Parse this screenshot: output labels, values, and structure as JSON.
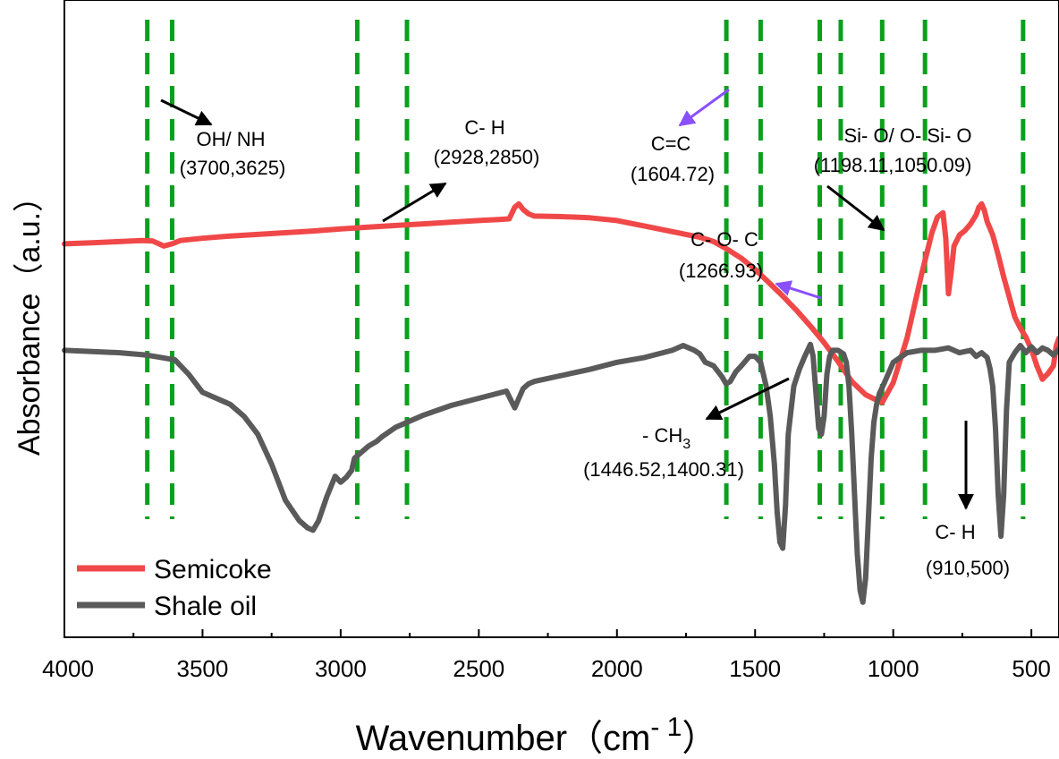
{
  "chart_data": {
    "type": "line",
    "title": "",
    "xlabel": "Wavenumber（cm",
    "xlabel_sup": "- 1",
    "xlabel_close": "）",
    "ylabel": "Absorbance（a.u.）",
    "xlim": [
      4000,
      400
    ],
    "x_reversed": true,
    "xticks": [
      4000,
      3500,
      3000,
      2500,
      2000,
      1500,
      1000,
      500
    ],
    "yticks_shown": false,
    "grid": false,
    "legend_position": "bottom-left",
    "legend": [
      "Semicoke",
      "Shale oil"
    ],
    "series": [
      {
        "name": "Semicoke",
        "color": "#f04848",
        "x": [
          4000,
          3900,
          3800,
          3720,
          3680,
          3640,
          3610,
          3580,
          3500,
          3400,
          3300,
          3200,
          3100,
          3000,
          2900,
          2800,
          2700,
          2600,
          2500,
          2420,
          2390,
          2370,
          2355,
          2340,
          2320,
          2300,
          2200,
          2100,
          2000,
          1900,
          1800,
          1700,
          1650,
          1600,
          1550,
          1500,
          1450,
          1400,
          1350,
          1300,
          1250,
          1200,
          1150,
          1100,
          1050,
          1040,
          1000,
          950,
          900,
          860,
          840,
          820,
          810,
          800,
          790,
          780,
          760,
          740,
          720,
          700,
          690,
          680,
          670,
          660,
          640,
          620,
          600,
          560,
          540,
          520,
          500,
          480,
          460,
          440,
          420,
          410,
          400
        ],
        "y": [
          4.0,
          4.1,
          4.2,
          4.3,
          4.25,
          3.8,
          4.0,
          4.3,
          4.5,
          4.7,
          4.85,
          5.0,
          5.15,
          5.35,
          5.5,
          5.65,
          5.8,
          5.95,
          6.1,
          6.2,
          6.25,
          7.3,
          7.6,
          7.1,
          6.7,
          6.5,
          6.45,
          6.35,
          6.1,
          5.6,
          5.1,
          4.6,
          4.2,
          3.5,
          2.7,
          1.7,
          0.5,
          -0.7,
          -2.0,
          -3.4,
          -4.9,
          -6.6,
          -8.4,
          -9.6,
          -10.2,
          -10.3,
          -8.5,
          -4.5,
          1.0,
          5.0,
          6.4,
          6.8,
          4.5,
          -0.5,
          1.5,
          3.8,
          4.8,
          5.2,
          5.8,
          6.6,
          7.3,
          7.6,
          7.0,
          6.0,
          4.8,
          3.0,
          1.0,
          -2.6,
          -3.6,
          -4.4,
          -5.5,
          -7.0,
          -8.2,
          -7.7,
          -7.0,
          -5.2,
          -4.5
        ]
      },
      {
        "name": "Shale oil",
        "color": "#5a5a5a",
        "x": [
          4000,
          3900,
          3800,
          3700,
          3600,
          3550,
          3500,
          3450,
          3400,
          3350,
          3300,
          3250,
          3200,
          3150,
          3120,
          3100,
          3080,
          3050,
          3020,
          3000,
          2980,
          2960,
          2950,
          2930,
          2900,
          2870,
          2850,
          2800,
          2750,
          2700,
          2600,
          2500,
          2400,
          2370,
          2355,
          2340,
          2320,
          2300,
          2200,
          2100,
          2000,
          1900,
          1800,
          1760,
          1740,
          1720,
          1700,
          1680,
          1650,
          1620,
          1605,
          1590,
          1570,
          1550,
          1520,
          1500,
          1480,
          1460,
          1445,
          1430,
          1420,
          1410,
          1400,
          1390,
          1380,
          1360,
          1340,
          1320,
          1300,
          1290,
          1280,
          1270,
          1260,
          1250,
          1240,
          1230,
          1220,
          1200,
          1180,
          1170,
          1160,
          1150,
          1140,
          1130,
          1120,
          1110,
          1100,
          1090,
          1080,
          1070,
          1060,
          1050,
          1030,
          1000,
          950,
          900,
          850,
          800,
          760,
          720,
          700,
          680,
          660,
          650,
          640,
          630,
          620,
          610,
          600,
          590,
          580,
          560,
          540,
          520,
          500,
          480,
          460,
          440,
          420,
          400
        ],
        "y": [
          -1.0,
          -1.1,
          -1.2,
          -1.4,
          -1.8,
          -3.0,
          -4.5,
          -5.0,
          -5.5,
          -6.5,
          -8.0,
          -10.5,
          -13.5,
          -15.2,
          -15.8,
          -16.0,
          -15.2,
          -13.2,
          -11.5,
          -12.0,
          -11.6,
          -11.0,
          -10.0,
          -9.6,
          -9.0,
          -8.6,
          -8.2,
          -7.4,
          -6.9,
          -6.4,
          -5.6,
          -5.0,
          -4.4,
          -5.8,
          -5.0,
          -4.2,
          -3.8,
          -3.6,
          -3.1,
          -2.6,
          -2.0,
          -1.6,
          -1.0,
          -0.6,
          -0.8,
          -1.0,
          -1.3,
          -2.0,
          -2.3,
          -3.2,
          -3.8,
          -3.6,
          -2.8,
          -2.3,
          -1.5,
          -1.5,
          -2.0,
          -4.0,
          -6.5,
          -10.5,
          -14.5,
          -17.0,
          -17.5,
          -14.0,
          -8.0,
          -4.0,
          -2.6,
          -1.5,
          -0.5,
          -1.5,
          -4.5,
          -7.5,
          -8.0,
          -6.5,
          -3.0,
          -1.5,
          -1.0,
          -1.0,
          -1.3,
          -2.0,
          -4.0,
          -8.0,
          -13.0,
          -18.0,
          -21.0,
          -22.0,
          -20.0,
          -15.0,
          -10.0,
          -7.0,
          -5.5,
          -4.6,
          -3.6,
          -2.0,
          -1.2,
          -1.0,
          -1.0,
          -0.8,
          -1.2,
          -1.0,
          -1.5,
          -1.2,
          -1.6,
          -2.5,
          -4.0,
          -7.5,
          -13.0,
          -16.5,
          -13.0,
          -6.0,
          -2.0,
          -1.2,
          -0.6,
          -1.2,
          -0.7,
          -1.2,
          -0.8,
          -1.0,
          -1.4,
          -0.9
        ]
      }
    ],
    "marker_lines": {
      "color": "#0aa01e",
      "positions": [
        3700,
        3610,
        2940,
        2760,
        1604,
        1480,
        1266,
        1190,
        1040,
        885,
        530
      ]
    },
    "annotations": [
      {
        "line1": "OH/ NH",
        "line2": "(3700,3625)"
      },
      {
        "line1": "C- H",
        "line2": "(2928,2850)"
      },
      {
        "line1": "C=C",
        "line2": "(1604.72)"
      },
      {
        "line1": "Si- O/ O- Si- O",
        "line2": "(1198.11,1050.09)"
      },
      {
        "line1": "C- O- C",
        "line2": "(1266.93)"
      },
      {
        "line1": "- CH",
        "line1_sub": "3",
        "line2": "(1446.52,1400.31)"
      },
      {
        "line1": "C- H",
        "line2": "(910,500)"
      }
    ]
  }
}
